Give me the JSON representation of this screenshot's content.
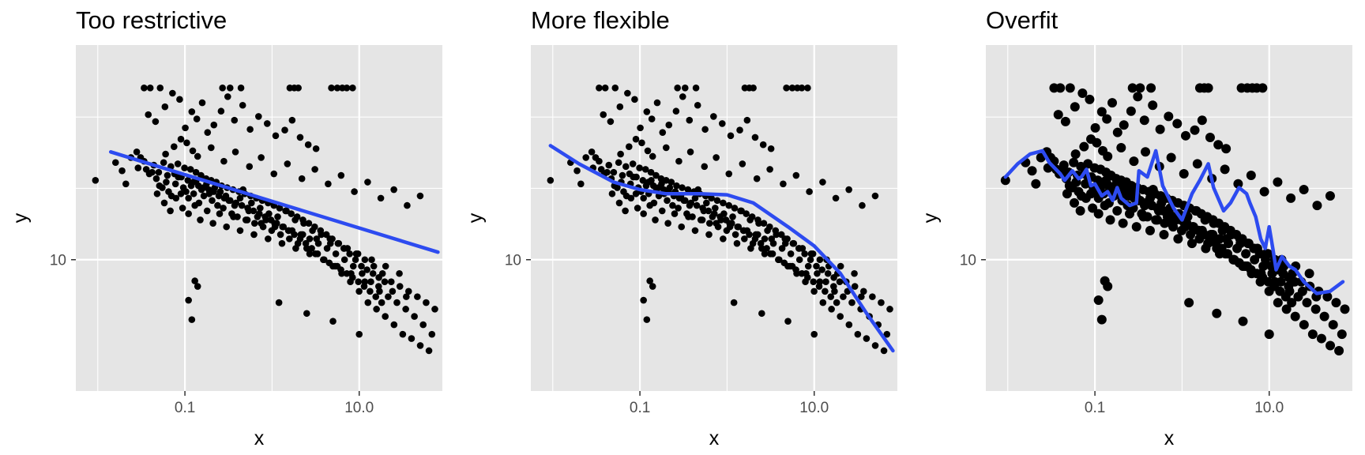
{
  "chart_data": [
    {
      "type": "scatter",
      "title": "Too restrictive",
      "xlabel": "x",
      "ylabel": "y",
      "x_scale": "log10",
      "y_scale": "log10",
      "xlim": [
        0.0056,
        90
      ],
      "ylim": [
        1.2,
        320
      ],
      "x_ticks": [
        {
          "value": 0.1,
          "label": "0.1"
        },
        {
          "value": 10,
          "label": "10.0"
        }
      ],
      "y_ticks": [
        {
          "value": 10,
          "label": "10"
        }
      ],
      "grid": true,
      "point_size": "small",
      "fit_type": "linear",
      "fit_line": [
        [
          0.0141,
          57
        ],
        [
          80,
          11.3
        ]
      ]
    },
    {
      "type": "scatter",
      "title": "More flexible",
      "xlabel": "x",
      "ylabel": "y",
      "x_scale": "log10",
      "y_scale": "log10",
      "xlim": [
        0.0056,
        90
      ],
      "ylim": [
        1.2,
        320
      ],
      "x_ticks": [
        {
          "value": 0.1,
          "label": "0.1"
        },
        {
          "value": 10,
          "label": "10.0"
        }
      ],
      "y_ticks": [
        {
          "value": 10,
          "label": "10"
        }
      ],
      "grid": true,
      "point_size": "small",
      "fit_type": "smooth",
      "fit_line": [
        [
          0.0094,
          63
        ],
        [
          0.02,
          47
        ],
        [
          0.05,
          35
        ],
        [
          0.1,
          31
        ],
        [
          0.2,
          29
        ],
        [
          0.5,
          29
        ],
        [
          1.0,
          28.5
        ],
        [
          2.0,
          25
        ],
        [
          5.0,
          17
        ],
        [
          10.0,
          12.5
        ],
        [
          20.0,
          8
        ],
        [
          40.0,
          4.2
        ],
        [
          80.0,
          2.3
        ]
      ]
    },
    {
      "type": "scatter",
      "title": "Overfit",
      "xlabel": "x",
      "ylabel": "y",
      "x_scale": "log10",
      "y_scale": "log10",
      "xlim": [
        0.0056,
        90
      ],
      "ylim": [
        1.2,
        320
      ],
      "x_ticks": [
        {
          "value": 0.1,
          "label": "0.1"
        },
        {
          "value": 10,
          "label": "10.0"
        }
      ],
      "y_ticks": [
        {
          "value": 10,
          "label": "10"
        }
      ],
      "grid": true,
      "point_size": "large",
      "fit_type": "interpolating",
      "fit_line": [
        [
          0.0094,
          38
        ],
        [
          0.013,
          47
        ],
        [
          0.018,
          55
        ],
        [
          0.025,
          58
        ],
        [
          0.03,
          48
        ],
        [
          0.04,
          40
        ],
        [
          0.045,
          36
        ],
        [
          0.055,
          42
        ],
        [
          0.065,
          37
        ],
        [
          0.07,
          38
        ],
        [
          0.08,
          43
        ],
        [
          0.09,
          33
        ],
        [
          0.1,
          34
        ],
        [
          0.12,
          28
        ],
        [
          0.14,
          30
        ],
        [
          0.16,
          26
        ],
        [
          0.18,
          32
        ],
        [
          0.2,
          27
        ],
        [
          0.25,
          24
        ],
        [
          0.3,
          25
        ],
        [
          0.32,
          42
        ],
        [
          0.4,
          38
        ],
        [
          0.5,
          58
        ],
        [
          0.6,
          33
        ],
        [
          0.8,
          23
        ],
        [
          1.0,
          19
        ],
        [
          1.3,
          29
        ],
        [
          1.6,
          36
        ],
        [
          2.0,
          47
        ],
        [
          2.3,
          32
        ],
        [
          3.0,
          22
        ],
        [
          3.6,
          25
        ],
        [
          4.5,
          32
        ],
        [
          5.5,
          29
        ],
        [
          6.0,
          25
        ],
        [
          7.0,
          20
        ],
        [
          8.0,
          14
        ],
        [
          9.0,
          12
        ],
        [
          10.0,
          17
        ],
        [
          11.0,
          12
        ],
        [
          12.0,
          8.5
        ],
        [
          14.0,
          10.5
        ],
        [
          17.0,
          9
        ],
        [
          20.0,
          8.5
        ],
        [
          25.0,
          7
        ],
        [
          35.0,
          5.8
        ],
        [
          50.0,
          6.0
        ],
        [
          70.0,
          7.0
        ]
      ]
    }
  ],
  "scatter_points": [
    [
      0.0094,
      36
    ],
    [
      0.021,
      34
    ],
    [
      0.028,
      57
    ],
    [
      0.031,
      52
    ],
    [
      0.036,
      43
    ],
    [
      0.042,
      41
    ],
    [
      0.047,
      37
    ],
    [
      0.051,
      33
    ],
    [
      0.055,
      32
    ],
    [
      0.061,
      35
    ],
    [
      0.065,
      30
    ],
    [
      0.07,
      28
    ],
    [
      0.078,
      34
    ],
    [
      0.084,
      38
    ],
    [
      0.09,
      29
    ],
    [
      0.096,
      32
    ],
    [
      0.103,
      30
    ],
    [
      0.11,
      27
    ],
    [
      0.118,
      33
    ],
    [
      0.126,
      29
    ],
    [
      0.135,
      36
    ],
    [
      0.145,
      25
    ],
    [
      0.155,
      31
    ],
    [
      0.165,
      28
    ],
    [
      0.177,
      34
    ],
    [
      0.19,
      29
    ],
    [
      0.205,
      26
    ],
    [
      0.22,
      32
    ],
    [
      0.237,
      24
    ],
    [
      0.255,
      30
    ],
    [
      0.275,
      23
    ],
    [
      0.295,
      28
    ],
    [
      0.32,
      26
    ],
    [
      0.345,
      21
    ],
    [
      0.372,
      24
    ],
    [
      0.4,
      20
    ],
    [
      0.43,
      27
    ],
    [
      0.465,
      31
    ],
    [
      0.5,
      19
    ],
    [
      0.54,
      22
    ],
    [
      0.58,
      25
    ],
    [
      0.63,
      18
    ],
    [
      0.68,
      20
    ],
    [
      0.73,
      23
    ],
    [
      0.79,
      17
    ],
    [
      0.85,
      19
    ],
    [
      0.92,
      21
    ],
    [
      0.99,
      16
    ],
    [
      1.07,
      18
    ],
    [
      1.16,
      20
    ],
    [
      1.25,
      15
    ],
    [
      1.35,
      17
    ],
    [
      1.46,
      22
    ],
    [
      1.58,
      14
    ],
    [
      1.7,
      16
    ],
    [
      1.84,
      19
    ],
    [
      1.98,
      13
    ],
    [
      2.14,
      15
    ],
    [
      2.31,
      18
    ],
    [
      2.5,
      12
    ],
    [
      2.7,
      14
    ],
    [
      2.91,
      16
    ],
    [
      3.15,
      11
    ],
    [
      3.4,
      13
    ],
    [
      3.67,
      15
    ],
    [
      3.96,
      10
    ],
    [
      4.28,
      12
    ],
    [
      4.62,
      14
    ],
    [
      4.99,
      9
    ],
    [
      5.39,
      11
    ],
    [
      5.82,
      13
    ],
    [
      6.29,
      8
    ],
    [
      6.79,
      10
    ],
    [
      7.33,
      12
    ],
    [
      7.92,
      7
    ],
    [
      8.55,
      9
    ],
    [
      9.24,
      11
    ],
    [
      9.98,
      6
    ],
    [
      10.8,
      8
    ],
    [
      11.6,
      10
    ],
    [
      12.6,
      5
    ],
    [
      13.6,
      7
    ],
    [
      14.7,
      9
    ],
    [
      15.8,
      4.5
    ],
    [
      17.1,
      6
    ],
    [
      18.5,
      8
    ],
    [
      19.9,
      4
    ],
    [
      21.5,
      5.5
    ],
    [
      23.3,
      7
    ],
    [
      25.1,
      3.5
    ],
    [
      27.1,
      5
    ],
    [
      29.3,
      6.5
    ],
    [
      31.6,
      3
    ],
    [
      34.2,
      4.5
    ],
    [
      36.9,
      6
    ],
    [
      39.8,
      2.8
    ],
    [
      43.0,
      4
    ],
    [
      46.5,
      5.5
    ],
    [
      50.2,
      2.5
    ],
    [
      54.2,
      3.5
    ],
    [
      58.6,
      5
    ],
    [
      63.2,
      2.3
    ],
    [
      68.3,
      3
    ],
    [
      73.8,
      4.5
    ],
    [
      0.034,
      160
    ],
    [
      0.04,
      160
    ],
    [
      0.052,
      160
    ],
    [
      0.27,
      160
    ],
    [
      0.33,
      160
    ],
    [
      0.44,
      160
    ],
    [
      1.6,
      160
    ],
    [
      1.8,
      160
    ],
    [
      2.0,
      160
    ],
    [
      4.8,
      160
    ],
    [
      5.6,
      160
    ],
    [
      6.4,
      160
    ],
    [
      7.2,
      160
    ],
    [
      8.4,
      160
    ],
    [
      0.038,
      104
    ],
    [
      0.046,
      93
    ],
    [
      0.059,
      118
    ],
    [
      0.072,
      147
    ],
    [
      0.087,
      133
    ],
    [
      0.101,
      84
    ],
    [
      0.12,
      109
    ],
    [
      0.137,
      97
    ],
    [
      0.158,
      126
    ],
    [
      0.182,
      78
    ],
    [
      0.215,
      88
    ],
    [
      0.26,
      110
    ],
    [
      0.31,
      139
    ],
    [
      0.37,
      95
    ],
    [
      0.46,
      121
    ],
    [
      0.56,
      82
    ],
    [
      0.7,
      101
    ],
    [
      0.88,
      90
    ],
    [
      1.1,
      74
    ],
    [
      1.4,
      81
    ],
    [
      1.7,
      95
    ],
    [
      2.1,
      72
    ],
    [
      2.6,
      64
    ],
    [
      3.2,
      60
    ],
    [
      0.016,
      48
    ],
    [
      0.019,
      42
    ],
    [
      0.024,
      52
    ],
    [
      0.029,
      44
    ],
    [
      0.034,
      49
    ],
    [
      0.039,
      40
    ],
    [
      0.044,
      46
    ],
    [
      0.05,
      41
    ],
    [
      0.057,
      48
    ],
    [
      0.063,
      39
    ],
    [
      0.069,
      45
    ],
    [
      0.076,
      40
    ],
    [
      0.083,
      47
    ],
    [
      0.091,
      38
    ],
    [
      0.099,
      44
    ],
    [
      0.108,
      36
    ],
    [
      0.116,
      43
    ],
    [
      0.125,
      35
    ],
    [
      0.134,
      41
    ],
    [
      0.143,
      33
    ],
    [
      0.153,
      39
    ],
    [
      0.163,
      32
    ],
    [
      0.175,
      37
    ],
    [
      0.188,
      31
    ],
    [
      0.2,
      36
    ],
    [
      0.214,
      30
    ],
    [
      0.229,
      35
    ],
    [
      0.245,
      28
    ],
    [
      0.263,
      33
    ],
    [
      0.283,
      27
    ],
    [
      0.305,
      32
    ],
    [
      0.33,
      26
    ],
    [
      0.356,
      31
    ],
    [
      0.385,
      25
    ],
    [
      0.417,
      30
    ],
    [
      0.45,
      24
    ],
    [
      0.486,
      29
    ],
    [
      0.525,
      23
    ],
    [
      0.567,
      28
    ],
    [
      0.612,
      22
    ],
    [
      0.661,
      27
    ],
    [
      0.714,
      21
    ],
    [
      0.771,
      26
    ],
    [
      0.833,
      20
    ],
    [
      0.9,
      25
    ],
    [
      0.972,
      19
    ],
    [
      1.05,
      24
    ],
    [
      1.13,
      18
    ],
    [
      1.22,
      23
    ],
    [
      1.32,
      17
    ],
    [
      1.43,
      22
    ],
    [
      1.54,
      16
    ],
    [
      1.66,
      21
    ],
    [
      1.8,
      15
    ],
    [
      1.94,
      20
    ],
    [
      2.1,
      14
    ],
    [
      2.26,
      19
    ],
    [
      2.44,
      13
    ],
    [
      2.64,
      18
    ],
    [
      2.85,
      12
    ],
    [
      3.08,
      17
    ],
    [
      3.33,
      11
    ],
    [
      3.6,
      16
    ],
    [
      3.88,
      10
    ],
    [
      4.2,
      15
    ],
    [
      4.53,
      9.5
    ],
    [
      4.9,
      14
    ],
    [
      5.29,
      9
    ],
    [
      5.71,
      13
    ],
    [
      6.17,
      8.5
    ],
    [
      6.66,
      12
    ],
    [
      7.2,
      8
    ],
    [
      7.77,
      11
    ],
    [
      8.39,
      7.5
    ],
    [
      9.07,
      10
    ],
    [
      9.79,
      7
    ],
    [
      10.6,
      9
    ],
    [
      11.4,
      6.5
    ],
    [
      12.3,
      8.5
    ],
    [
      13.3,
      6
    ],
    [
      14.4,
      8
    ],
    [
      15.5,
      5.5
    ],
    [
      16.8,
      7.5
    ],
    [
      18.1,
      5
    ],
    [
      19.6,
      7
    ],
    [
      0.048,
      29
    ],
    [
      0.058,
      25
    ],
    [
      0.068,
      22
    ],
    [
      0.079,
      27
    ],
    [
      0.094,
      23
    ],
    [
      0.11,
      21
    ],
    [
      0.13,
      24
    ],
    [
      0.15,
      19
    ],
    [
      0.18,
      22
    ],
    [
      0.21,
      18
    ],
    [
      0.25,
      21
    ],
    [
      0.3,
      17
    ],
    [
      0.36,
      20
    ],
    [
      0.43,
      16
    ],
    [
      0.52,
      19
    ],
    [
      0.62,
      15
    ],
    [
      0.75,
      18
    ],
    [
      0.9,
      14
    ],
    [
      1.08,
      17
    ],
    [
      1.3,
      13
    ],
    [
      1.56,
      16
    ],
    [
      1.87,
      12
    ],
    [
      2.25,
      15
    ],
    [
      2.7,
      11
    ],
    [
      3.24,
      14
    ],
    [
      3.89,
      10
    ],
    [
      4.67,
      13
    ],
    [
      5.6,
      9
    ],
    [
      6.72,
      12
    ],
    [
      8.07,
      8
    ],
    [
      9.68,
      11
    ],
    [
      11.6,
      7
    ],
    [
      13.9,
      10
    ],
    [
      16.7,
      6.5
    ],
    [
      20.1,
      9
    ],
    [
      24.1,
      6
    ],
    [
      28.9,
      8
    ],
    [
      34.7,
      5.5
    ],
    [
      0.12,
      3.8
    ],
    [
      0.14,
      6.5
    ],
    [
      0.11,
      5.2
    ],
    [
      0.13,
      7.1
    ],
    [
      1.2,
      5.0
    ],
    [
      2.5,
      4.2
    ],
    [
      5.0,
      3.7
    ],
    [
      10.0,
      3.0
    ],
    [
      0.06,
      55
    ],
    [
      0.075,
      62
    ],
    [
      0.09,
      70
    ],
    [
      0.105,
      66
    ],
    [
      0.123,
      58
    ],
    [
      0.14,
      53
    ],
    [
      0.2,
      61
    ],
    [
      0.28,
      49
    ],
    [
      0.38,
      57
    ],
    [
      0.55,
      45
    ],
    [
      0.75,
      52
    ],
    [
      1.05,
      40
    ],
    [
      1.5,
      47
    ],
    [
      2.2,
      37
    ],
    [
      3.1,
      43
    ],
    [
      4.4,
      34
    ],
    [
      6.2,
      39
    ],
    [
      8.8,
      30
    ],
    [
      12.5,
      35
    ],
    [
      17.7,
      27
    ],
    [
      25.0,
      31
    ],
    [
      35.5,
      24
    ],
    [
      50.1,
      28
    ]
  ],
  "colors": {
    "panel_background": "#e5e5e5",
    "gridline": "#ffffff",
    "point": "#000000",
    "fit_line": "#2d4bf0",
    "tick_text": "#4d4d4d"
  }
}
